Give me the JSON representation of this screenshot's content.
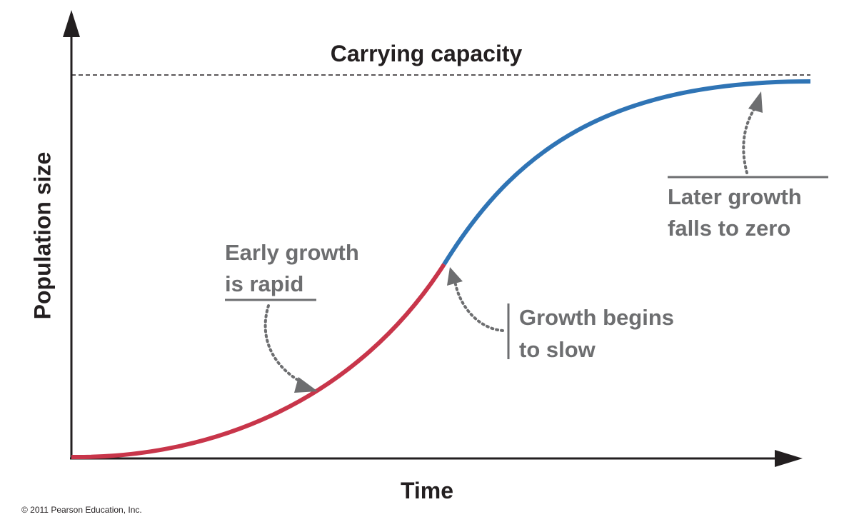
{
  "title": "Carrying capacity",
  "axes": {
    "x_label": "Time",
    "y_label": "Population size"
  },
  "annotations": [
    {
      "lines": [
        "Early growth",
        "is rapid"
      ]
    },
    {
      "lines": [
        "Growth begins",
        "to slow"
      ]
    },
    {
      "lines": [
        "Later growth",
        "falls to zero"
      ]
    }
  ],
  "footer": {
    "copyright": "© 2011 Pearson Education, Inc."
  }
}
